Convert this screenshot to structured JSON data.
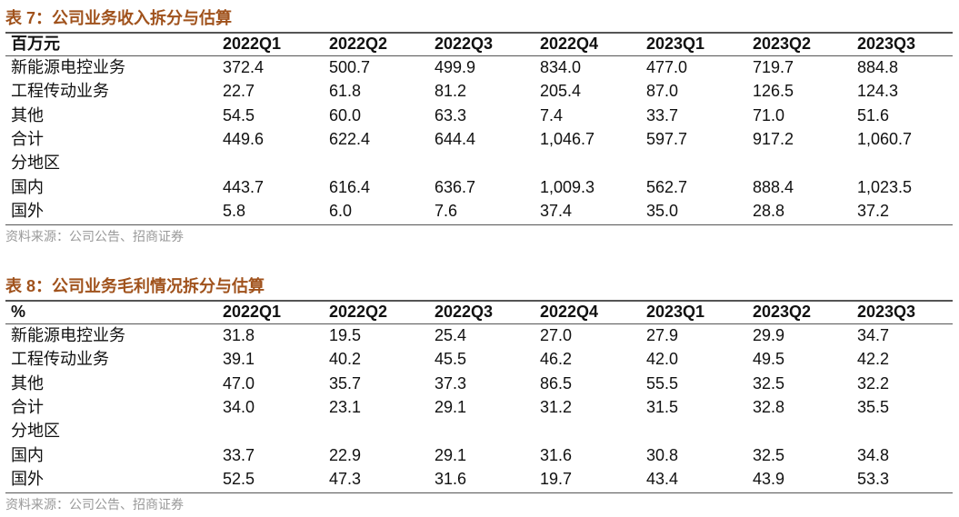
{
  "tables": [
    {
      "title": "表 7：公司业务收入拆分与估算",
      "header": [
        "百万元",
        "2022Q1",
        "2022Q2",
        "2022Q3",
        "2022Q4",
        "2023Q1",
        "2023Q2",
        "2023Q3"
      ],
      "rows": [
        [
          "新能源电控业务",
          "372.4",
          "500.7",
          "499.9",
          "834.0",
          "477.0",
          "719.7",
          "884.8"
        ],
        [
          "工程传动业务",
          "22.7",
          "61.8",
          "81.2",
          "205.4",
          "87.0",
          "126.5",
          "124.3"
        ],
        [
          "其他",
          "54.5",
          "60.0",
          "63.3",
          "7.4",
          "33.7",
          "71.0",
          "51.6"
        ],
        [
          "合计",
          "449.6",
          "622.4",
          "644.4",
          "1,046.7",
          "597.7",
          "917.2",
          "1,060.7"
        ],
        [
          "分地区"
        ],
        [
          "国内",
          "443.7",
          "616.4",
          "636.7",
          "1,009.3",
          "562.7",
          "888.4",
          "1,023.5"
        ],
        [
          "国外",
          "5.8",
          "6.0",
          "7.6",
          "37.4",
          "35.0",
          "28.8",
          "37.2"
        ]
      ],
      "source": "资料来源：公司公告、招商证券"
    },
    {
      "title": "表 8：公司业务毛利情况拆分与估算",
      "header": [
        "%",
        "2022Q1",
        "2022Q2",
        "2022Q3",
        "2022Q4",
        "2023Q1",
        "2023Q2",
        "2023Q3"
      ],
      "rows": [
        [
          "新能源电控业务",
          "31.8",
          "19.5",
          "25.4",
          "27.0",
          "27.9",
          "29.9",
          "34.7"
        ],
        [
          "工程传动业务",
          "39.1",
          "40.2",
          "45.5",
          "46.2",
          "42.0",
          "49.5",
          "42.2"
        ],
        [
          "其他",
          "47.0",
          "35.7",
          "37.3",
          "86.5",
          "55.5",
          "32.5",
          "32.2"
        ],
        [
          "合计",
          "34.0",
          "23.1",
          "29.1",
          "31.2",
          "31.5",
          "32.8",
          "35.5"
        ],
        [
          "分地区"
        ],
        [
          "国内",
          "33.7",
          "22.9",
          "29.1",
          "31.6",
          "30.8",
          "32.5",
          "34.8"
        ],
        [
          "国外",
          "52.5",
          "47.3",
          "31.6",
          "19.7",
          "43.4",
          "43.9",
          "53.3"
        ]
      ],
      "source": "资料来源：公司公告、招商证券"
    }
  ]
}
